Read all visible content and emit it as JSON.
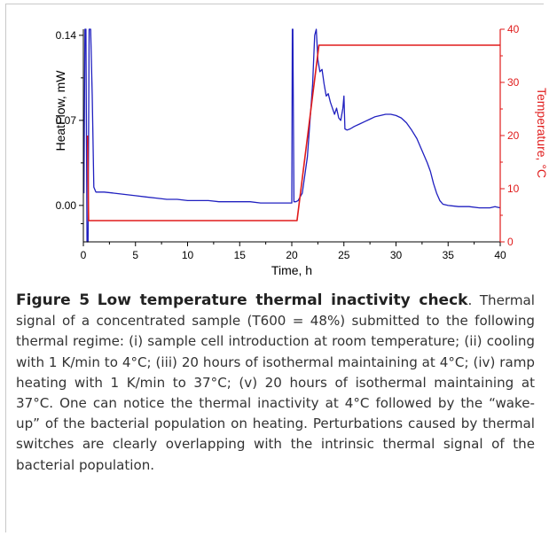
{
  "figure": {
    "label": "Figure 5",
    "title": "Low temperature thermal inactivity check",
    "caption_body": ". Thermal signal of a concentrated sample (T600 = 48%) submitted to the following thermal regime: (i) sample cell introduction at room temperature; (ii) cooling with 1 K/min to 4°C; (iii) 20 hours of isothermal maintaining at 4°C; (iv) ramp heating with 1 K/min to 37°C; (v) 20 hours of isothermal maintaining at 37°C. One can notice the thermal inactivity at 4°C followed by the “wake-up” of the bacterial population on heating. Perturbations caused by thermal switches are clearly overlapping with the intrinsic thermal signal of the bacterial population."
  },
  "chart_data": {
    "type": "line",
    "xlabel": "Time, h",
    "ylabel_left": "HeatFlow, mW",
    "ylabel_right": "Temperature, °C",
    "xlim": [
      0,
      40
    ],
    "ylim_left": [
      -0.03,
      0.145
    ],
    "ylim_right": [
      0,
      40
    ],
    "x_ticks": [
      0,
      5,
      10,
      15,
      20,
      25,
      30,
      35,
      40
    ],
    "y_left_ticks": [
      "0.00",
      "0.07",
      "0.14"
    ],
    "y_right_ticks": [
      0,
      10,
      20,
      30,
      40
    ],
    "colors": {
      "heatflow": "#2020c0",
      "temperature": "#e01b1b",
      "axis_right": "#e01b1b"
    },
    "series": [
      {
        "axis": "left",
        "x": [
          0.05,
          0.15,
          0.25,
          0.35,
          0.45,
          0.55,
          0.7,
          0.85,
          1.0,
          1.2,
          1.5,
          2,
          3,
          4,
          5,
          6,
          7,
          8,
          9,
          10,
          11,
          12,
          13,
          14,
          15,
          16,
          17,
          18,
          19,
          19.5,
          20,
          20.05,
          20.1,
          20.2,
          20.4,
          20.6,
          21,
          21.5,
          22,
          22.2,
          22.35,
          22.5,
          22.7,
          22.9,
          23.1,
          23.3,
          23.5,
          23.7,
          23.9,
          24.1,
          24.3,
          24.5,
          24.7,
          24.9,
          25.0,
          25.1,
          25.3,
          25.6,
          26,
          26.5,
          27,
          27.5,
          28,
          28.5,
          29,
          29.5,
          30,
          30.5,
          31,
          31.5,
          32,
          32.5,
          33,
          33.3,
          33.6,
          33.9,
          34.2,
          34.5,
          35,
          36,
          37,
          38,
          39,
          39.5,
          40
        ],
        "y": [
          0.01,
          0.145,
          0.145,
          -0.03,
          -0.03,
          0.145,
          0.145,
          0.09,
          0.015,
          0.011,
          0.011,
          0.011,
          0.01,
          0.009,
          0.008,
          0.007,
          0.006,
          0.005,
          0.005,
          0.004,
          0.004,
          0.004,
          0.003,
          0.003,
          0.003,
          0.003,
          0.002,
          0.002,
          0.002,
          0.002,
          0.002,
          0.145,
          0.145,
          0.003,
          0.003,
          0.004,
          0.01,
          0.04,
          0.1,
          0.14,
          0.145,
          0.12,
          0.11,
          0.112,
          0.1,
          0.09,
          0.092,
          0.085,
          0.08,
          0.075,
          0.08,
          0.072,
          0.07,
          0.08,
          0.09,
          0.063,
          0.062,
          0.063,
          0.065,
          0.067,
          0.069,
          0.071,
          0.073,
          0.074,
          0.075,
          0.075,
          0.074,
          0.072,
          0.068,
          0.062,
          0.055,
          0.045,
          0.035,
          0.028,
          0.018,
          0.01,
          0.004,
          0.001,
          0.0,
          -0.001,
          -0.001,
          -0.002,
          -0.002,
          -0.001,
          -0.002
        ]
      },
      {
        "axis": "right",
        "x": [
          0.4,
          0.5,
          1.0,
          20.0,
          20.5,
          22.6,
          40
        ],
        "y": [
          20,
          4,
          4,
          4,
          4,
          37,
          37
        ]
      }
    ],
    "grid": false,
    "legend": "none"
  }
}
